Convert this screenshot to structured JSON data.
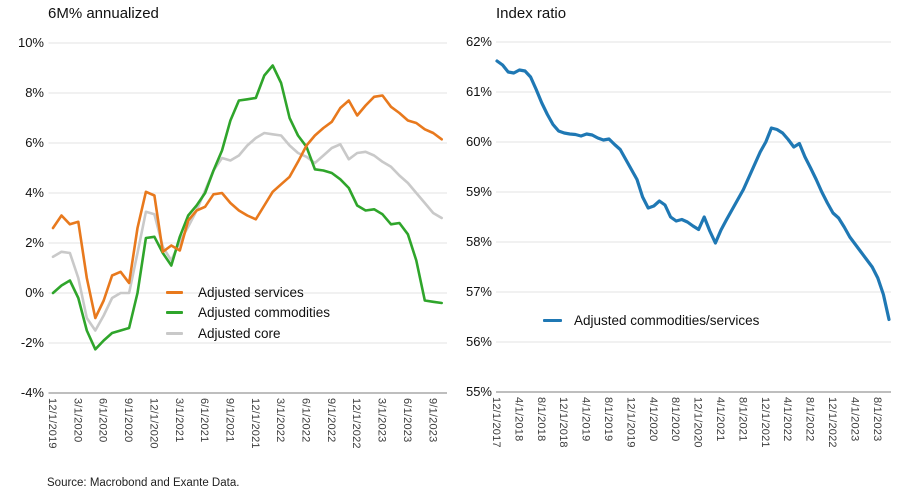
{
  "source": "Source: Macrobond and Exante Data.",
  "chart_data": [
    {
      "type": "line",
      "title": "6M% annualized",
      "xlabel": "",
      "ylabel": "",
      "ylim": [
        -4,
        10
      ],
      "grid": true,
      "legend_position": "inside-lower-middle",
      "y_grid_values": [
        10,
        8,
        6,
        4,
        2,
        0,
        -2,
        -4
      ],
      "y_tick_labels": [
        "10%",
        "8%",
        "6%",
        "4%",
        "2%",
        "0%",
        "-2%",
        "-4%"
      ],
      "x_tick_labels": [
        "12/1/2019",
        "3/1/2020",
        "6/1/2020",
        "9/1/2020",
        "12/1/2020",
        "3/1/2021",
        "6/1/2021",
        "9/1/2021",
        "12/1/2021",
        "3/1/2022",
        "6/1/2022",
        "9/1/2022",
        "12/1/2022",
        "3/1/2023",
        "6/1/2023",
        "9/1/2023"
      ],
      "x_frequency": "monthly",
      "x_range": {
        "start": "12/1/2019",
        "end": "10/1/2023"
      },
      "series": [
        {
          "name": "Adjusted services",
          "color": "#E8791D",
          "values": [
            2.6,
            3.1,
            2.75,
            2.85,
            0.6,
            -1.0,
            -0.3,
            0.7,
            0.85,
            0.4,
            2.6,
            4.05,
            3.9,
            1.65,
            1.9,
            1.7,
            2.9,
            3.3,
            3.45,
            3.95,
            4.0,
            3.6,
            3.3,
            3.1,
            2.95,
            3.5,
            4.05,
            4.35,
            4.65,
            5.25,
            5.9,
            6.3,
            6.6,
            6.85,
            7.4,
            7.7,
            7.1,
            7.5,
            7.85,
            7.9,
            7.45,
            7.2,
            6.9,
            6.8,
            6.55,
            6.4,
            6.15
          ]
        },
        {
          "name": "Adjusted commodities",
          "color": "#2FA52B",
          "values": [
            0.0,
            0.3,
            0.5,
            -0.2,
            -1.5,
            -2.25,
            -1.9,
            -1.6,
            -1.5,
            -1.4,
            0.0,
            2.2,
            2.25,
            1.6,
            1.1,
            2.25,
            3.1,
            3.5,
            4.0,
            4.9,
            5.7,
            6.9,
            7.7,
            7.75,
            7.8,
            8.7,
            9.1,
            8.4,
            7.0,
            6.3,
            5.85,
            4.95,
            4.9,
            4.8,
            4.55,
            4.2,
            3.5,
            3.3,
            3.35,
            3.15,
            2.75,
            2.8,
            2.35,
            1.3,
            -0.3,
            -0.35,
            -0.4
          ]
        },
        {
          "name": "Adjusted core",
          "color": "#C9C9C9",
          "values": [
            1.45,
            1.65,
            1.6,
            0.6,
            -1.0,
            -1.5,
            -0.9,
            -0.2,
            0.0,
            0.0,
            1.6,
            3.25,
            3.15,
            1.85,
            1.3,
            2.05,
            2.65,
            3.3,
            4.1,
            4.9,
            5.4,
            5.3,
            5.5,
            5.9,
            6.2,
            6.4,
            6.35,
            6.3,
            5.9,
            5.6,
            5.45,
            5.2,
            5.5,
            5.8,
            5.95,
            5.35,
            5.6,
            5.65,
            5.5,
            5.25,
            5.05,
            4.7,
            4.4,
            4.0,
            3.6,
            3.2,
            3.0
          ]
        }
      ]
    },
    {
      "type": "line",
      "title": "Index ratio",
      "xlabel": "",
      "ylabel": "",
      "ylim": [
        55,
        62
      ],
      "grid": true,
      "legend_position": "inside-lower-middle",
      "y_grid_values": [
        62,
        61,
        60,
        59,
        58,
        57,
        56,
        55
      ],
      "y_tick_labels": [
        "62%",
        "61%",
        "60%",
        "59%",
        "58%",
        "57%",
        "56%",
        "55%"
      ],
      "x_tick_labels": [
        "12/1/2017",
        "4/1/2018",
        "8/1/2018",
        "12/1/2018",
        "4/1/2019",
        "8/1/2019",
        "12/1/2019",
        "4/1/2020",
        "8/1/2020",
        "12/1/2020",
        "4/1/2021",
        "8/1/2021",
        "12/1/2021",
        "4/1/2022",
        "8/1/2022",
        "12/1/2022",
        "4/1/2023",
        "8/1/2023"
      ],
      "x_frequency": "monthly",
      "x_range": {
        "start": "12/1/2017",
        "end": "9/1/2023"
      },
      "series": [
        {
          "name": "Adjusted commodities/services",
          "color": "#1F78B4",
          "values": [
            61.62,
            61.54,
            61.4,
            61.38,
            61.44,
            61.42,
            61.3,
            61.05,
            60.78,
            60.55,
            60.35,
            60.22,
            60.18,
            60.16,
            60.15,
            60.12,
            60.16,
            60.14,
            60.08,
            60.04,
            60.06,
            59.95,
            59.85,
            59.65,
            59.45,
            59.25,
            58.9,
            58.68,
            58.72,
            58.82,
            58.74,
            58.5,
            58.42,
            58.45,
            58.4,
            58.32,
            58.25,
            58.5,
            58.22,
            57.98,
            58.24,
            58.45,
            58.65,
            58.85,
            59.05,
            59.3,
            59.55,
            59.8,
            60.0,
            60.28,
            60.25,
            60.18,
            60.05,
            59.9,
            59.97,
            59.7,
            59.48,
            59.25,
            59.0,
            58.78,
            58.58,
            58.48,
            58.3,
            58.1,
            57.95,
            57.8,
            57.65,
            57.5,
            57.28,
            56.95,
            56.45
          ]
        }
      ]
    }
  ]
}
